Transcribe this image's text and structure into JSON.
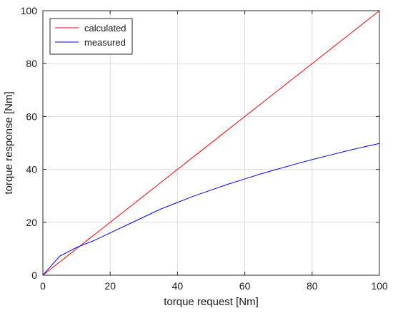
{
  "chart_data": {
    "type": "line",
    "title": "",
    "xlabel": "torque request [Nm]",
    "ylabel": "torque response [Nm]",
    "xlim": [
      0,
      100
    ],
    "ylim": [
      0,
      100
    ],
    "xticks": [
      0,
      20,
      40,
      60,
      80,
      100
    ],
    "yticks": [
      0,
      20,
      40,
      60,
      80,
      100
    ],
    "grid": true,
    "legend_position": "top-left",
    "series": [
      {
        "name": "calculated",
        "color": "#ff0000",
        "x": [
          0,
          100
        ],
        "y": [
          0,
          100
        ]
      },
      {
        "name": "measured",
        "color": "#0000ff",
        "x": [
          0,
          5,
          10,
          15,
          20,
          25,
          30,
          35,
          40,
          45,
          50,
          55,
          60,
          65,
          70,
          75,
          80,
          85,
          90,
          95,
          100
        ],
        "y": [
          0,
          7.2,
          10.5,
          13,
          16,
          19,
          22,
          25,
          27.5,
          30,
          32.2,
          34.4,
          36.4,
          38.4,
          40.2,
          42,
          43.7,
          45.3,
          46.9,
          48.4,
          49.8
        ]
      }
    ]
  }
}
